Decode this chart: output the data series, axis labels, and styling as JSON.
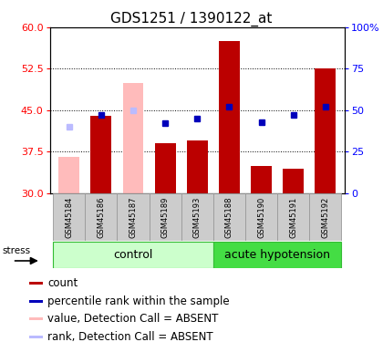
{
  "title": "GDS1251 / 1390122_at",
  "samples": [
    "GSM45184",
    "GSM45186",
    "GSM45187",
    "GSM45189",
    "GSM45193",
    "GSM45188",
    "GSM45190",
    "GSM45191",
    "GSM45192"
  ],
  "bar_values": [
    null,
    44.0,
    null,
    39.0,
    39.5,
    57.5,
    35.0,
    34.5,
    52.5
  ],
  "bar_absent": [
    36.5,
    null,
    50.0,
    null,
    null,
    null,
    null,
    null,
    null
  ],
  "rank_pct": [
    null,
    47.0,
    null,
    42.0,
    45.0,
    52.0,
    43.0,
    47.0,
    52.0
  ],
  "rank_pct_absent": [
    40.0,
    null,
    50.0,
    null,
    null,
    null,
    null,
    null,
    null
  ],
  "ylim_left": [
    30,
    60
  ],
  "ylim_right": [
    0,
    100
  ],
  "yticks_left": [
    30,
    37.5,
    45,
    52.5,
    60
  ],
  "yticks_right": [
    0,
    25,
    50,
    75,
    100
  ],
  "bar_color": "#bb0000",
  "bar_absent_color": "#ffbbbb",
  "rank_color": "#0000bb",
  "rank_absent_color": "#bbbbff",
  "control_bg": "#ccffcc",
  "acute_bg": "#44dd44",
  "label_bg": "#cccccc",
  "label_edge": "#999999",
  "group_label_fontsize": 9,
  "title_fontsize": 11,
  "tick_fontsize": 8,
  "legend_fontsize": 8.5
}
